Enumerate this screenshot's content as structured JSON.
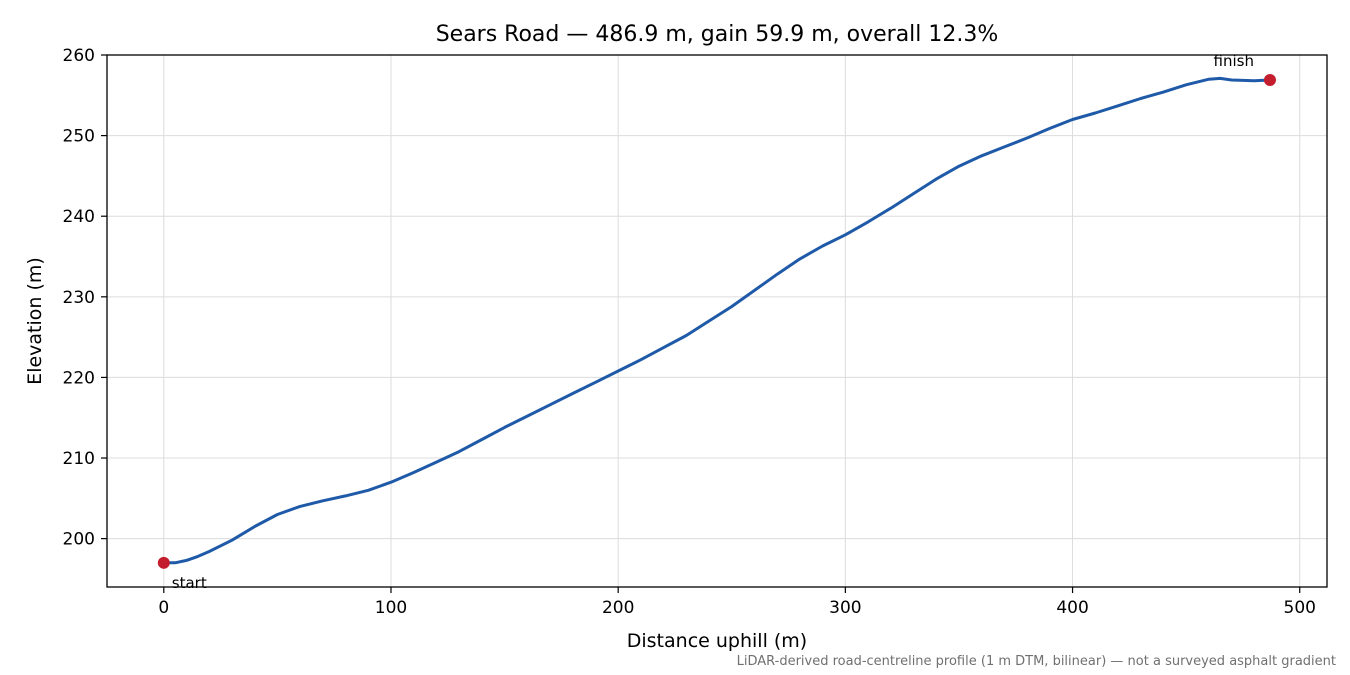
{
  "chart_data": {
    "type": "line",
    "title": "Sears Road — 486.9 m, gain 59.9 m, overall 12.3%",
    "xlabel": "Distance uphill (m)",
    "ylabel": "Elevation (m)",
    "xlim": [
      -25,
      512
    ],
    "ylim": [
      194,
      260
    ],
    "xticks": [
      0,
      100,
      200,
      300,
      400,
      500
    ],
    "yticks": [
      200,
      210,
      220,
      230,
      240,
      250,
      260
    ],
    "grid": true,
    "series": [
      {
        "color": "#1f5aa8",
        "x": [
          0,
          5,
          10,
          15,
          20,
          30,
          40,
          50,
          60,
          70,
          80,
          90,
          100,
          110,
          120,
          130,
          140,
          150,
          160,
          170,
          180,
          190,
          200,
          210,
          220,
          230,
          240,
          250,
          260,
          270,
          280,
          290,
          300,
          310,
          320,
          330,
          340,
          350,
          360,
          370,
          380,
          390,
          400,
          410,
          420,
          430,
          440,
          450,
          460,
          465,
          470,
          480,
          486.9
        ],
        "y": [
          197.0,
          197.0,
          197.3,
          197.8,
          198.4,
          199.8,
          201.5,
          203.0,
          204.0,
          204.7,
          205.3,
          206.0,
          207.0,
          208.2,
          209.5,
          210.8,
          212.3,
          213.8,
          215.2,
          216.6,
          218.0,
          219.4,
          220.8,
          222.2,
          223.7,
          225.2,
          227.0,
          228.8,
          230.8,
          232.8,
          234.7,
          236.3,
          237.7,
          239.3,
          241.0,
          242.8,
          244.6,
          246.2,
          247.5,
          248.6,
          249.7,
          250.9,
          252.0,
          252.8,
          253.7,
          254.6,
          255.4,
          256.3,
          257.0,
          257.1,
          256.9,
          256.8,
          256.9
        ]
      }
    ],
    "markers": [
      {
        "label": "start",
        "x": 0,
        "y": 197.0,
        "color": "#c41e2e"
      },
      {
        "label": "finish",
        "x": 486.9,
        "y": 256.9,
        "color": "#c41e2e"
      }
    ],
    "footnote": "LiDAR-derived road-centreline profile (1 m DTM, bilinear) — not a surveyed asphalt gradient"
  }
}
